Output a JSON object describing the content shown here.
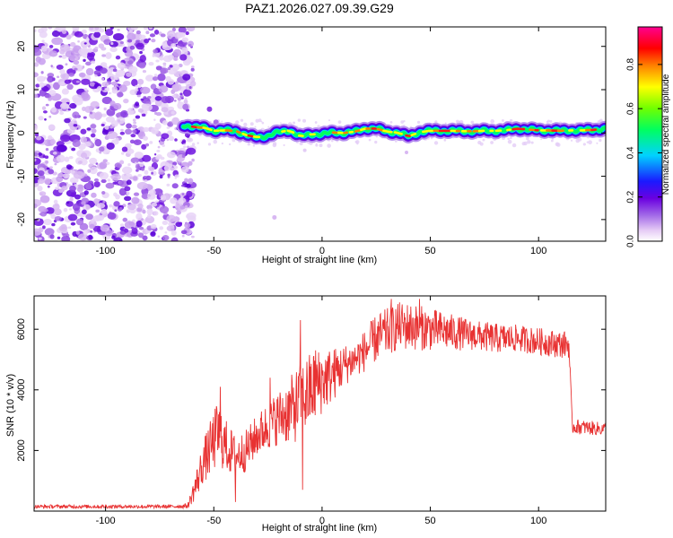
{
  "title": "PAZ1.2026.027.09.39.G29",
  "chart_data": [
    {
      "type": "heatmap",
      "name": "spectrogram",
      "xlabel": "Height of straight line (km)",
      "ylabel": "Frequency (Hz)",
      "xlim": [
        -133,
        131
      ],
      "ylim": [
        -25,
        24.5
      ],
      "xticks": [
        -100,
        -50,
        0,
        50,
        100
      ],
      "yticks": [
        -20,
        -10,
        0,
        10,
        20
      ],
      "colorbar": {
        "label": "Normalized spectral amplitude",
        "ticks": [
          0.0,
          0.2,
          0.4,
          0.6,
          0.8
        ],
        "tick_labels": [
          "0.0",
          "0.2",
          "0.4",
          "0.6",
          "0.8"
        ],
        "range": [
          0,
          0.97
        ]
      },
      "noise_region_x": [
        -133,
        -62
      ],
      "ridge": [
        {
          "x": -64,
          "y": 1.8
        },
        {
          "x": -58,
          "y": 1.3
        },
        {
          "x": -54,
          "y": 1.2
        },
        {
          "x": -50,
          "y": 0.5
        },
        {
          "x": -45,
          "y": 0.6
        },
        {
          "x": -40,
          "y": 0.5
        },
        {
          "x": -35,
          "y": -0.5
        },
        {
          "x": -30,
          "y": -1.0
        },
        {
          "x": -25,
          "y": -0.7
        },
        {
          "x": -20,
          "y": 0.2
        },
        {
          "x": -15,
          "y": 0.6
        },
        {
          "x": -10,
          "y": -0.8
        },
        {
          "x": -5,
          "y": -0.3
        },
        {
          "x": 0,
          "y": -0.3
        },
        {
          "x": 5,
          "y": 0.1
        },
        {
          "x": 10,
          "y": 0.0
        },
        {
          "x": 15,
          "y": 0.3
        },
        {
          "x": 20,
          "y": 1.0
        },
        {
          "x": 25,
          "y": 1.0
        },
        {
          "x": 30,
          "y": 0.3
        },
        {
          "x": 35,
          "y": 0.1
        },
        {
          "x": 40,
          "y": -0.8
        },
        {
          "x": 45,
          "y": 0.2
        },
        {
          "x": 50,
          "y": 0.5
        },
        {
          "x": 55,
          "y": 0.5
        },
        {
          "x": 60,
          "y": 0.5
        },
        {
          "x": 65,
          "y": 0.4
        },
        {
          "x": 70,
          "y": 0.4
        },
        {
          "x": 75,
          "y": 0.5
        },
        {
          "x": 80,
          "y": 0.5
        },
        {
          "x": 85,
          "y": 0.6
        },
        {
          "x": 90,
          "y": 1.0
        },
        {
          "x": 95,
          "y": 0.8
        },
        {
          "x": 100,
          "y": 0.6
        },
        {
          "x": 105,
          "y": 0.6
        },
        {
          "x": 110,
          "y": 0.5
        },
        {
          "x": 115,
          "y": 0.6
        },
        {
          "x": 120,
          "y": 0.6
        },
        {
          "x": 125,
          "y": 0.7
        },
        {
          "x": 131,
          "y": 1.0
        }
      ]
    },
    {
      "type": "line",
      "name": "snr",
      "xlabel": "Height of straight line (km)",
      "ylabel": "SNR (10 * v/v)",
      "xlim": [
        -133,
        131
      ],
      "ylim": [
        0,
        7100
      ],
      "xticks": [
        -100,
        -50,
        0,
        50,
        100
      ],
      "yticks": [
        2000,
        4000,
        6000
      ],
      "color": "#e83232",
      "envelope": [
        {
          "x": -133,
          "mean": 150,
          "noise": 60
        },
        {
          "x": -70,
          "mean": 150,
          "noise": 60
        },
        {
          "x": -62,
          "mean": 170,
          "noise": 80
        },
        {
          "x": -58,
          "mean": 900,
          "noise": 500
        },
        {
          "x": -55,
          "mean": 1600,
          "noise": 700
        },
        {
          "x": -52,
          "mean": 2000,
          "noise": 900
        },
        {
          "x": -48,
          "mean": 2600,
          "noise": 1100
        },
        {
          "x": -45,
          "mean": 2200,
          "noise": 900
        },
        {
          "x": -40,
          "mean": 1800,
          "noise": 700
        },
        {
          "x": -35,
          "mean": 2000,
          "noise": 700
        },
        {
          "x": -30,
          "mean": 2500,
          "noise": 700
        },
        {
          "x": -25,
          "mean": 2800,
          "noise": 800
        },
        {
          "x": -20,
          "mean": 3100,
          "noise": 900
        },
        {
          "x": -15,
          "mean": 3300,
          "noise": 1100
        },
        {
          "x": -10,
          "mean": 3600,
          "noise": 1300
        },
        {
          "x": -5,
          "mean": 4000,
          "noise": 1300
        },
        {
          "x": 0,
          "mean": 4300,
          "noise": 1100
        },
        {
          "x": 5,
          "mean": 4500,
          "noise": 900
        },
        {
          "x": 10,
          "mean": 4800,
          "noise": 700
        },
        {
          "x": 15,
          "mean": 5000,
          "noise": 600
        },
        {
          "x": 20,
          "mean": 5300,
          "noise": 700
        },
        {
          "x": 25,
          "mean": 5700,
          "noise": 800
        },
        {
          "x": 30,
          "mean": 5900,
          "noise": 800
        },
        {
          "x": 35,
          "mean": 6100,
          "noise": 800
        },
        {
          "x": 40,
          "mean": 6100,
          "noise": 800
        },
        {
          "x": 50,
          "mean": 6000,
          "noise": 700
        },
        {
          "x": 60,
          "mean": 5900,
          "noise": 600
        },
        {
          "x": 70,
          "mean": 5800,
          "noise": 500
        },
        {
          "x": 80,
          "mean": 5700,
          "noise": 500
        },
        {
          "x": 90,
          "mean": 5700,
          "noise": 450
        },
        {
          "x": 100,
          "mean": 5600,
          "noise": 450
        },
        {
          "x": 110,
          "mean": 5500,
          "noise": 450
        },
        {
          "x": 114,
          "mean": 5500,
          "noise": 450
        },
        {
          "x": 115.5,
          "mean": 2800,
          "noise": 250
        },
        {
          "x": 131,
          "mean": 2700,
          "noise": 220
        }
      ],
      "spikes": [
        {
          "x": -47,
          "y": 4100
        },
        {
          "x": -40,
          "y": 300
        },
        {
          "x": -24,
          "y": 4400
        },
        {
          "x": -10,
          "y": 6300
        },
        {
          "x": -9,
          "y": 700
        },
        {
          "x": -3,
          "y": 5300
        },
        {
          "x": 32,
          "y": 7000
        },
        {
          "x": 45,
          "y": 7000
        }
      ]
    }
  ]
}
